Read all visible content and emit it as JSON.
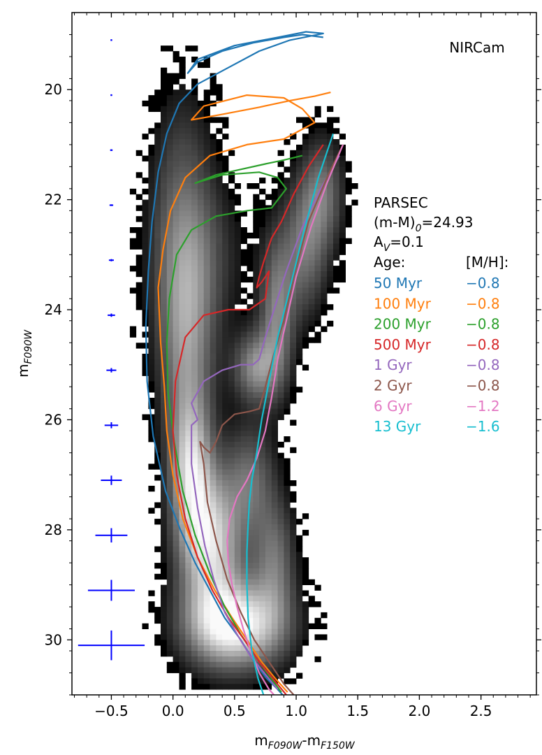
{
  "chart_data": {
    "type": "scatter",
    "title": "",
    "panel_label": "NIRCam",
    "xlabel": {
      "main": "m",
      "sub1": "F090W",
      "dash": "-m",
      "sub2": "F150W"
    },
    "ylabel": {
      "main": "m",
      "sub": "F090W"
    },
    "xlim": [
      -0.82,
      2.95
    ],
    "ylim": [
      31.0,
      18.6
    ],
    "y_inverted": true,
    "grid": false,
    "x_ticks": [
      -0.5,
      0.0,
      0.5,
      1.0,
      1.5,
      2.0,
      2.5
    ],
    "x_tick_labels": [
      "−0.5",
      "0.0",
      "0.5",
      "1.0",
      "1.5",
      "2.0",
      "2.5"
    ],
    "y_ticks": [
      20,
      22,
      24,
      26,
      28,
      30
    ],
    "y_tick_labels": [
      "20",
      "22",
      "24",
      "26",
      "28",
      "30"
    ],
    "legend_placement": "right",
    "model_text": [
      "PARSEC",
      "(m-M)",
      "0",
      "=24.93",
      "A",
      "V",
      "=0.1"
    ],
    "legend_header": {
      "age": "Age:",
      "mh": "[M/H]:"
    },
    "series": [
      {
        "name": "50 Myr",
        "mh": "−0.8",
        "color": "#1f77b4",
        "x": [
          1.22,
          1.05,
          0.9,
          0.65,
          0.4,
          0.2,
          0.12,
          0.2,
          0.5,
          0.85,
          1.08,
          1.22,
          0.95,
          0.7,
          0.45,
          0.2,
          0.05,
          -0.05,
          -0.12,
          -0.17,
          -0.2,
          -0.22,
          -0.21,
          -0.16,
          -0.06,
          0.06,
          0.18,
          0.3,
          0.42,
          0.55,
          0.66,
          0.76,
          0.85,
          0.93
        ],
        "y": [
          19.05,
          19.0,
          19.05,
          19.15,
          19.3,
          19.5,
          19.7,
          19.45,
          19.2,
          19.05,
          18.95,
          18.98,
          19.1,
          19.3,
          19.6,
          19.9,
          20.25,
          20.8,
          21.5,
          22.4,
          23.3,
          24.3,
          25.3,
          26.3,
          27.3,
          28.0,
          28.6,
          29.1,
          29.6,
          30.0,
          30.4,
          30.7,
          30.9,
          31.1
        ]
      },
      {
        "name": "100 Myr",
        "mh": "−0.8",
        "color": "#ff7f0e",
        "x": [
          1.28,
          1.15,
          0.95,
          0.7,
          0.4,
          0.15,
          0.25,
          0.6,
          0.9,
          1.05,
          1.15,
          0.9,
          0.6,
          0.3,
          0.1,
          -0.02,
          -0.08,
          -0.12,
          -0.1,
          -0.07,
          -0.05,
          0.0,
          0.08,
          0.2,
          0.34,
          0.48,
          0.6,
          0.72,
          0.83,
          0.93
        ],
        "y": [
          20.05,
          20.12,
          20.2,
          20.32,
          20.45,
          20.55,
          20.3,
          20.1,
          20.15,
          20.35,
          20.6,
          20.9,
          21.0,
          21.2,
          21.6,
          22.2,
          22.9,
          23.6,
          24.6,
          25.4,
          26.2,
          27.0,
          27.8,
          28.5,
          29.1,
          29.6,
          30.0,
          30.4,
          30.7,
          30.95
        ]
      },
      {
        "name": "200 Myr",
        "mh": "−0.8",
        "color": "#2ca02c",
        "x": [
          1.05,
          0.9,
          0.75,
          0.55,
          0.35,
          0.18,
          0.4,
          0.7,
          0.85,
          0.92,
          0.8,
          0.6,
          0.35,
          0.15,
          0.03,
          -0.03,
          -0.05,
          -0.04,
          0.01,
          0.08,
          0.18,
          0.3,
          0.42,
          0.55,
          0.67,
          0.78,
          0.88
        ],
        "y": [
          21.2,
          21.28,
          21.35,
          21.45,
          21.55,
          21.7,
          21.55,
          21.5,
          21.6,
          21.8,
          22.15,
          22.2,
          22.3,
          22.55,
          23.0,
          23.8,
          24.6,
          25.5,
          26.4,
          27.3,
          28.1,
          28.8,
          29.4,
          29.9,
          30.3,
          30.65,
          30.95
        ]
      },
      {
        "name": "500 Myr",
        "mh": "−0.8",
        "color": "#d62728",
        "x": [
          1.22,
          1.1,
          0.98,
          0.88,
          0.8,
          0.74,
          0.7,
          0.68,
          0.72,
          0.78,
          0.75,
          0.62,
          0.45,
          0.25,
          0.1,
          0.02,
          0.0,
          0.03,
          0.1,
          0.2,
          0.32,
          0.45,
          0.58,
          0.7,
          0.81,
          0.92
        ],
        "y": [
          21.0,
          21.4,
          21.9,
          22.4,
          22.7,
          23.1,
          23.4,
          23.6,
          23.5,
          23.3,
          23.8,
          24.0,
          24.0,
          24.1,
          24.5,
          25.3,
          26.2,
          27.0,
          27.8,
          28.5,
          29.1,
          29.6,
          30.0,
          30.4,
          30.7,
          31.0
        ]
      },
      {
        "name": "1 Gyr",
        "mh": "−0.8",
        "color": "#9467bd",
        "x": [
          1.35,
          1.2,
          1.05,
          0.92,
          0.82,
          0.75,
          0.7,
          0.65,
          0.55,
          0.4,
          0.25,
          0.15,
          0.2,
          0.15,
          0.15,
          0.2,
          0.26,
          0.33,
          0.42,
          0.52,
          0.63,
          0.74,
          0.85
        ],
        "y": [
          21.2,
          21.8,
          22.5,
          23.3,
          24.0,
          24.5,
          24.9,
          25.0,
          25.0,
          25.1,
          25.3,
          25.7,
          26.0,
          26.1,
          26.8,
          27.6,
          28.3,
          28.9,
          29.5,
          29.9,
          30.3,
          30.6,
          30.9
        ]
      },
      {
        "name": "2 Gyr",
        "mh": "−0.8",
        "color": "#8c564b",
        "x": [
          1.38,
          1.25,
          1.1,
          0.98,
          0.9,
          0.82,
          0.75,
          0.7,
          0.62,
          0.5,
          0.4,
          0.35,
          0.3,
          0.25,
          0.22,
          0.25,
          0.28,
          0.35,
          0.44,
          0.55,
          0.66,
          0.78,
          0.9,
          0.98
        ],
        "y": [
          21.0,
          21.6,
          22.4,
          23.4,
          24.2,
          24.8,
          25.4,
          25.8,
          25.85,
          25.9,
          26.1,
          26.4,
          26.6,
          26.5,
          26.4,
          26.8,
          27.5,
          28.2,
          28.9,
          29.5,
          30.0,
          30.4,
          30.8,
          31.0
        ]
      },
      {
        "name": "6 Gyr",
        "mh": "−1.2",
        "color": "#e377c2",
        "x": [
          1.38,
          1.25,
          1.12,
          1.0,
          0.92,
          0.85,
          0.8,
          0.75,
          0.68,
          0.6,
          0.52,
          0.46,
          0.44,
          0.45,
          0.48,
          0.52,
          0.57,
          0.63,
          0.7,
          0.78,
          0.86
        ],
        "y": [
          21.0,
          21.7,
          22.5,
          23.4,
          24.2,
          24.9,
          25.6,
          26.2,
          26.7,
          27.1,
          27.4,
          27.8,
          28.2,
          28.6,
          29.0,
          29.4,
          29.8,
          30.2,
          30.6,
          30.9,
          31.1
        ]
      },
      {
        "name": "13 Gyr",
        "mh": "−1.6",
        "color": "#17becf",
        "x": [
          1.3,
          1.18,
          1.06,
          0.95,
          0.85,
          0.78,
          0.72,
          0.68,
          0.64,
          0.62,
          0.61,
          0.6,
          0.6,
          0.61,
          0.64,
          0.69,
          0.75
        ],
        "y": [
          20.8,
          21.6,
          22.6,
          23.6,
          24.5,
          25.3,
          26.0,
          26.6,
          27.1,
          27.5,
          27.9,
          28.4,
          29.0,
          29.6,
          30.2,
          30.7,
          31.1
        ]
      }
    ],
    "error_bars": {
      "x": -0.5,
      "y": [
        19.1,
        20.1,
        21.1,
        22.1,
        23.1,
        24.1,
        25.1,
        26.1,
        27.1,
        28.1,
        29.1,
        30.1
      ],
      "xerr": [
        0.005,
        0.007,
        0.01,
        0.015,
        0.02,
        0.03,
        0.04,
        0.055,
        0.085,
        0.13,
        0.19,
        0.27
      ],
      "yerr": [
        0.005,
        0.007,
        0.01,
        0.015,
        0.02,
        0.03,
        0.04,
        0.055,
        0.085,
        0.13,
        0.19,
        0.27
      ],
      "color": "#0000ff"
    },
    "density_description": {
      "type": "heatmap",
      "colormap": "greys",
      "components": [
        "upper main sequence",
        "blue loop",
        "red giant branch",
        "red clump",
        "red giant branch bump region",
        "lower main sequence"
      ]
    }
  }
}
